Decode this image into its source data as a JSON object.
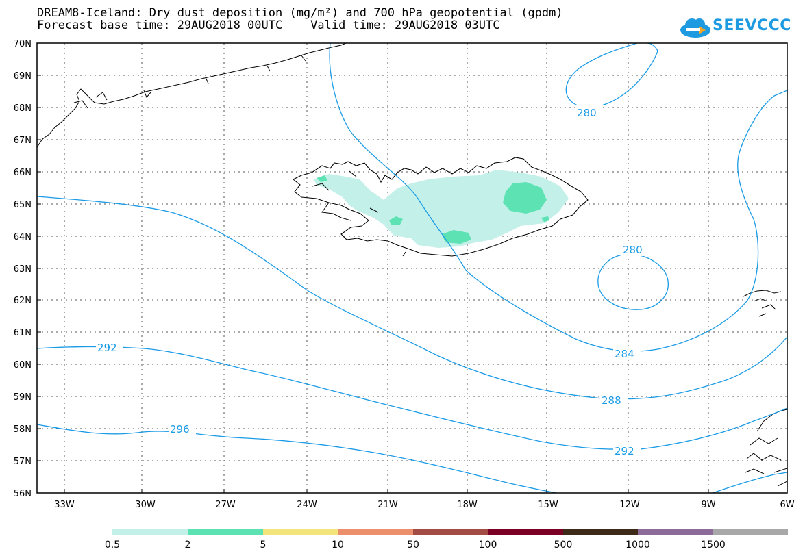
{
  "header": {
    "title_line1": "DREAM8-Iceland: Dry dust deposition (mg/m²) and 700 hPa geopotential (gpdm)",
    "title_line2": "Forecast base time: 29AUG2018 00UTC    Valid time: 29AUG2018 03UTC"
  },
  "logo": {
    "text": "SEEVCCC",
    "icon": "cloud-arrow-icon",
    "color": "#1e9be0"
  },
  "map": {
    "lat_labels": [
      "70N",
      "69N",
      "68N",
      "67N",
      "66N",
      "65N",
      "64N",
      "63N",
      "62N",
      "61N",
      "60N",
      "59N",
      "58N",
      "57N",
      "56N"
    ],
    "lon_labels": [
      "33W",
      "30W",
      "27W",
      "24W",
      "21W",
      "18W",
      "15W",
      "12W",
      "9W",
      "6W"
    ],
    "contour_color": "#1a9be6",
    "contour_labels": [
      "280",
      "280",
      "284",
      "288",
      "292",
      "292",
      "296"
    ]
  },
  "legend": {
    "colors": [
      "#c3f0e8",
      "#5de2b4",
      "#f3e57c",
      "#eb8f6c",
      "#a34c46",
      "#7b0026",
      "#3d2a18",
      "#8c6b98",
      "#a8a8a8"
    ],
    "labels": [
      "0.5",
      "2",
      "5",
      "10",
      "50",
      "100",
      "500",
      "1000",
      "1500"
    ]
  }
}
